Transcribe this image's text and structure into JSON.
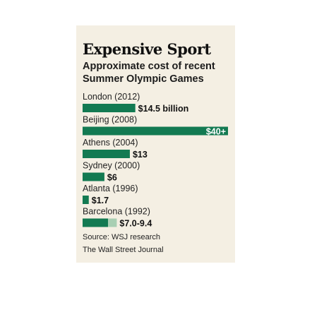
{
  "chart_data": {
    "type": "bar",
    "orientation": "horizontal",
    "title": "Expensive Sport",
    "subtitle_lines": [
      "Approximate cost of recent",
      "Summer Olympic Games"
    ],
    "unit": "billion USD",
    "categories": [
      "London (2012)",
      "Beijing (2008)",
      "Athens (2004)",
      "Sydney (2000)",
      "Atlanta (1996)",
      "Barcelona (1992)"
    ],
    "values": [
      14.5,
      40,
      13,
      6,
      1.7,
      7.0
    ],
    "range_high": [
      null,
      null,
      null,
      null,
      null,
      9.4
    ],
    "value_labels": [
      "$14.5 billion",
      "$40+",
      "$13",
      "$6",
      "$1.7",
      "$7.0-9.4"
    ],
    "colors": {
      "bar": "#137a52",
      "range": "#a8cfb3",
      "background": "#f4efe3"
    },
    "grid": false,
    "legend": "none"
  },
  "footer": {
    "source": "Source: WSJ research",
    "credit": "The Wall Street Journal"
  }
}
